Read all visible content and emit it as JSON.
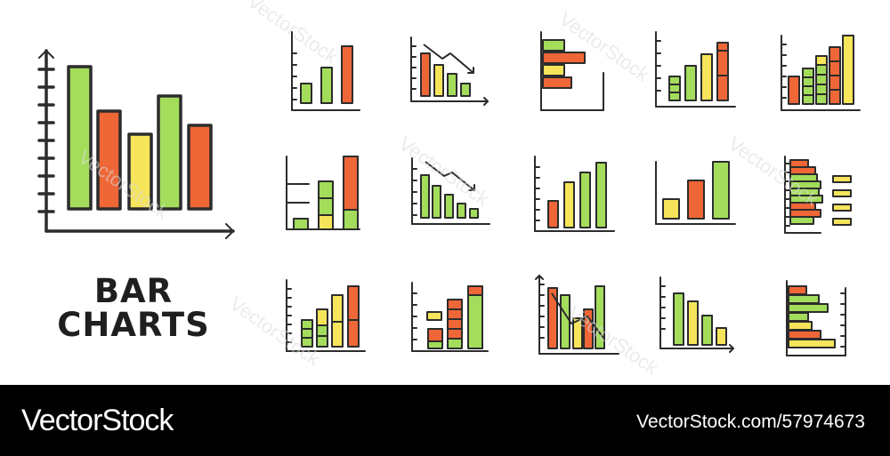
{
  "title_lines": [
    "BAR",
    "CHARTS"
  ],
  "footer": {
    "brand": "VectorStock",
    "asset_id": "VectorStock.com/57974673",
    "background": "#000000"
  },
  "watermark_text": "VectorStock",
  "palette": {
    "green": "#a3dd5b",
    "orange": "#ef6637",
    "yellow": "#f6e55a",
    "outline": "#2c2c2c"
  },
  "icons": [
    {
      "name": "large-bar-chart-icon"
    },
    {
      "name": "bar-chart-rising-3-icon"
    },
    {
      "name": "bar-chart-declining-arrow-icon"
    },
    {
      "name": "horizontal-bar-chart-icon"
    },
    {
      "name": "stacked-bar-chart-rising-icon"
    },
    {
      "name": "stacked-bar-chart-5-icon"
    },
    {
      "name": "stacked-bar-chart-3-levels-icon"
    },
    {
      "name": "bar-chart-declining-arrow-small-icon"
    },
    {
      "name": "bar-chart-rising-4-icon"
    },
    {
      "name": "bar-chart-3-bars-icon"
    },
    {
      "name": "horizontal-stacked-legend-icon"
    },
    {
      "name": "stacked-bar-chart-4-icon"
    },
    {
      "name": "stacked-bar-chart-legend-icon"
    },
    {
      "name": "mixed-bar-chart-icon"
    },
    {
      "name": "bar-chart-declining-icon"
    },
    {
      "name": "horizontal-bar-chart-grouped-icon"
    }
  ]
}
